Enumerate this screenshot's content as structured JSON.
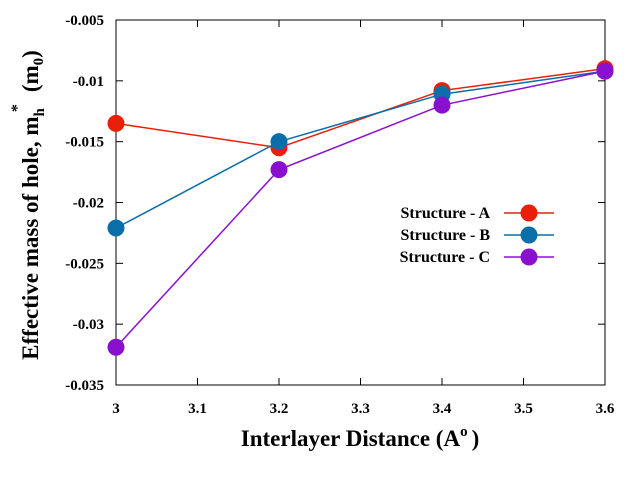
{
  "chart_data": {
    "type": "line",
    "x": [
      3.0,
      3.2,
      3.4,
      3.6
    ],
    "xlim": [
      3.0,
      3.6
    ],
    "ylim": [
      -0.035,
      -0.005
    ],
    "x_ticks": [
      "3",
      "3.1",
      "3.2",
      "3.3",
      "3.4",
      "3.5",
      "3.6"
    ],
    "y_ticks": [
      "-0.005",
      "-0.01",
      "-0.015",
      "-0.02",
      "-0.025",
      "-0.03",
      "-0.035"
    ],
    "xlabel": "Interlayer Distance (A",
    "xlabel_sup": "o",
    "xlabel_tail": ")",
    "ylabel": "Effective mass of hole, m",
    "ylabel_sub": "h",
    "ylabel_sup": "*",
    "ylabel_tail": "(m",
    "ylabel_tail_sub": "0",
    "ylabel_end": ")",
    "grid": false,
    "legend_position": "right-middle",
    "series": [
      {
        "name": "Structure - A",
        "color": "#e8200a",
        "values": [
          -0.0135,
          -0.0155,
          -0.0108,
          -0.009
        ]
      },
      {
        "name": "Structure - B",
        "color": "#0a6ea8",
        "values": [
          -0.0221,
          -0.015,
          -0.0111,
          -0.0092
        ]
      },
      {
        "name": "Structure - C",
        "color": "#8a10cf",
        "values": [
          -0.0319,
          -0.0173,
          -0.012,
          -0.0092
        ]
      }
    ]
  }
}
